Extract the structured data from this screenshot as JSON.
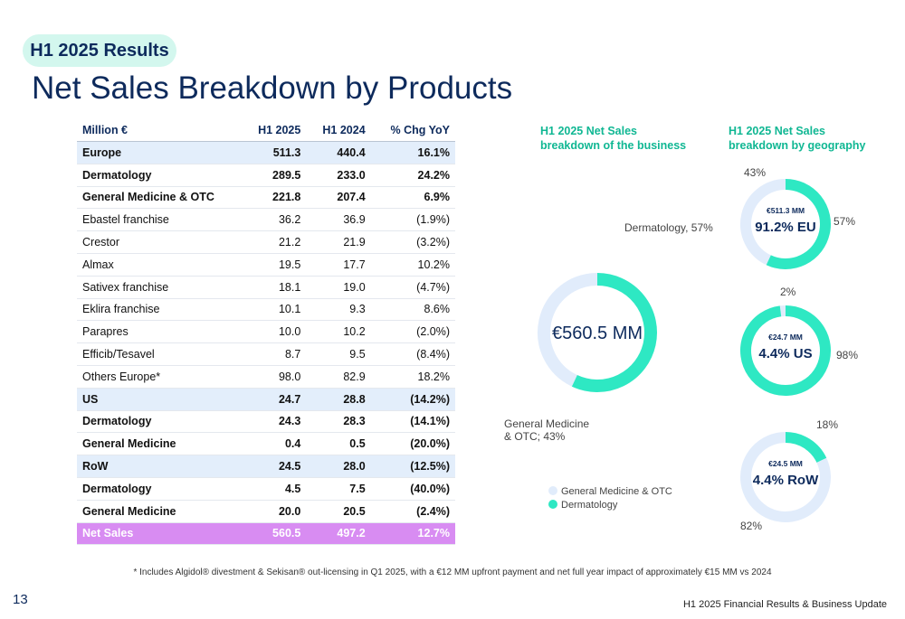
{
  "header": {
    "tag": "H1 2025 Results",
    "title": "Net Sales Breakdown by Products"
  },
  "table": {
    "columns": [
      "Million €",
      "H1 2025",
      "H1 2024",
      "% Chg YoY"
    ],
    "rows": [
      [
        "Europe",
        "511.3",
        "440.4",
        "16.1%"
      ],
      [
        "Dermatology",
        "289.5",
        "233.0",
        "24.2%"
      ],
      [
        "General Medicine & OTC",
        "221.8",
        "207.4",
        "6.9%"
      ],
      [
        "Ebastel franchise",
        "36.2",
        "36.9",
        "(1.9%)"
      ],
      [
        "Crestor",
        "21.2",
        "21.9",
        "(3.2%)"
      ],
      [
        "Almax",
        "19.5",
        "17.7",
        "10.2%"
      ],
      [
        "Sativex franchise",
        "18.1",
        "19.0",
        "(4.7%)"
      ],
      [
        "Eklira franchise",
        "10.1",
        "9.3",
        "8.6%"
      ],
      [
        "Parapres",
        "10.0",
        "10.2",
        "(2.0%)"
      ],
      [
        "Efficib/Tesavel",
        "8.7",
        "9.5",
        "(8.4%)"
      ],
      [
        "Others Europe*",
        "98.0",
        "82.9",
        "18.2%"
      ],
      [
        "US",
        "24.7",
        "28.8",
        "(14.2%)"
      ],
      [
        "Dermatology",
        "24.3",
        "28.3",
        "(14.1%)"
      ],
      [
        "General Medicine",
        "0.4",
        "0.5",
        "(20.0%)"
      ],
      [
        "RoW",
        "24.5",
        "28.0",
        "(12.5%)"
      ],
      [
        "Dermatology",
        "4.5",
        "7.5",
        "(40.0%)"
      ],
      [
        "General Medicine",
        "20.0",
        "20.5",
        "(2.4%)"
      ],
      [
        "Net Sales",
        "560.5",
        "497.2",
        "12.7%"
      ]
    ]
  },
  "chart_data": [
    {
      "type": "donut",
      "title": "H1 2025 Net Sales breakdown of the business",
      "center": "€560.5 MM",
      "categories": [
        "General Medicine & OTC",
        "Dermatology"
      ],
      "values": [
        43,
        57
      ],
      "value_labels": [
        "General Medicine & OTC; 43%",
        "Dermatology, 57%"
      ],
      "colors": [
        "#e1ecfb",
        "#2ee8c3"
      ],
      "legend": true
    },
    {
      "type": "donut",
      "title": "H1 2025 Net Sales breakdown by geography",
      "center_note": "€511.3 MM",
      "center": "91.2% EU",
      "values": [
        43,
        57
      ],
      "value_labels": [
        "43%",
        "57%"
      ],
      "colors": [
        "#e1ecfb",
        "#2ee8c3"
      ]
    },
    {
      "type": "donut",
      "center_note": "€24.7 MM",
      "center": "4.4% US",
      "values": [
        2,
        98
      ],
      "value_labels": [
        "2%",
        "98%"
      ],
      "colors": [
        "#e1ecfb",
        "#2ee8c3"
      ]
    },
    {
      "type": "donut",
      "center_note": "€24.5 MM",
      "center": "4.4% RoW",
      "values": [
        82,
        18
      ],
      "value_labels": [
        "82%",
        "18%"
      ],
      "colors": [
        "#e1ecfb",
        "#2ee8c3"
      ]
    }
  ],
  "footnote": "* Includes Algidol® divestment & Sekisan® out-licensing in Q1 2025, with a €12 MM upfront payment and net full year impact of approximately €15 MM vs 2024",
  "footer": {
    "page": "13",
    "text": "H1 2025 Financial Results & Business Update"
  }
}
